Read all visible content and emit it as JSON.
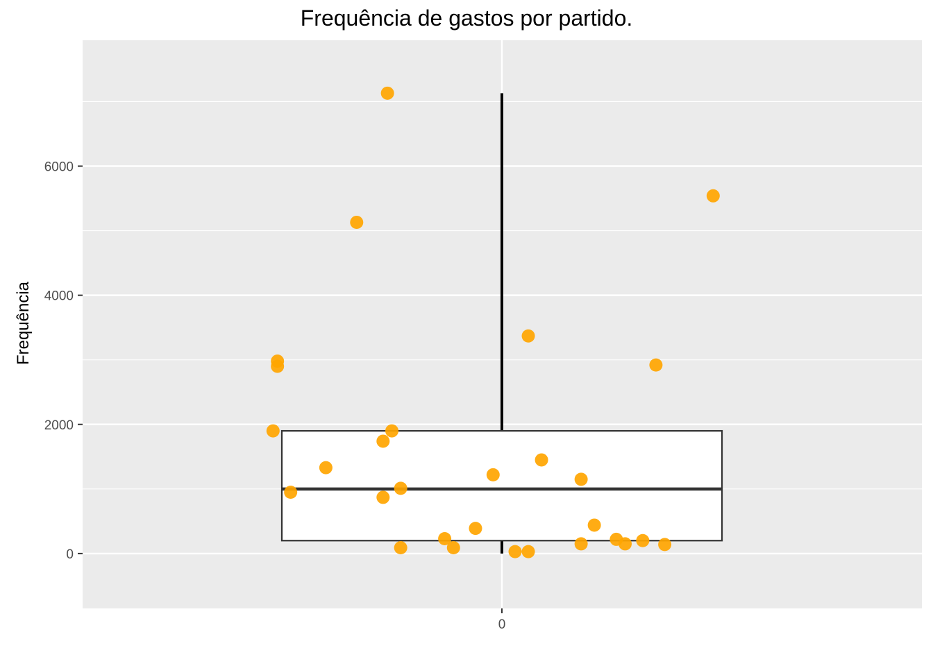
{
  "chart_data": {
    "type": "scatter",
    "title": "Frequência de gastos por partido.",
    "xlabel": "",
    "ylabel": "Frequência",
    "x_categories": [
      "0"
    ],
    "ylim": [
      -850,
      7950
    ],
    "y_ticks": [
      0,
      2000,
      4000,
      6000
    ],
    "y_tick_labels": [
      "0",
      "2000",
      "4000",
      "6000"
    ],
    "grid": true,
    "boxplot": {
      "lower_whisker": 0,
      "q1": 200,
      "median": 1000,
      "q3": 1900,
      "upper_whisker": 7130
    },
    "points": [
      {
        "x": -0.26,
        "y": 7130
      },
      {
        "x": 0.48,
        "y": 5540
      },
      {
        "x": -0.33,
        "y": 5130
      },
      {
        "x": 0.06,
        "y": 3370
      },
      {
        "x": -0.51,
        "y": 2980
      },
      {
        "x": -0.51,
        "y": 2900
      },
      {
        "x": 0.35,
        "y": 2920
      },
      {
        "x": -0.52,
        "y": 1900
      },
      {
        "x": -0.25,
        "y": 1900
      },
      {
        "x": -0.27,
        "y": 1740
      },
      {
        "x": 0.09,
        "y": 1450
      },
      {
        "x": -0.4,
        "y": 1330
      },
      {
        "x": -0.02,
        "y": 1220
      },
      {
        "x": 0.18,
        "y": 1150
      },
      {
        "x": -0.23,
        "y": 1010
      },
      {
        "x": -0.48,
        "y": 950
      },
      {
        "x": -0.27,
        "y": 870
      },
      {
        "x": 0.21,
        "y": 440
      },
      {
        "x": -0.06,
        "y": 390
      },
      {
        "x": -0.13,
        "y": 230
      },
      {
        "x": 0.26,
        "y": 220
      },
      {
        "x": 0.32,
        "y": 200
      },
      {
        "x": 0.18,
        "y": 150
      },
      {
        "x": 0.28,
        "y": 150
      },
      {
        "x": 0.37,
        "y": 140
      },
      {
        "x": -0.23,
        "y": 90
      },
      {
        "x": -0.11,
        "y": 90
      },
      {
        "x": 0.03,
        "y": 30
      },
      {
        "x": 0.06,
        "y": 30
      }
    ],
    "colors": {
      "point": "#FFA500",
      "panel": "#EBEBEB",
      "grid": "#FFFFFF",
      "box_fill": "#FFFFFF",
      "box_stroke": "#333333",
      "whisker": "#000000"
    }
  }
}
